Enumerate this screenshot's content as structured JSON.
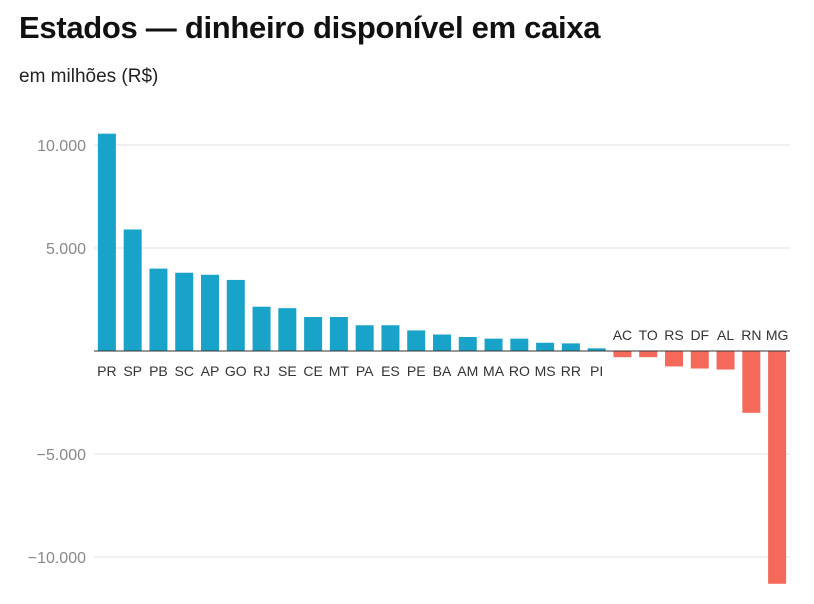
{
  "title": "Estados — dinheiro disponível em caixa",
  "subtitle": "em milhões (R$)",
  "chart_data": {
    "type": "bar",
    "title": "Estados — dinheiro disponível em caixa",
    "subtitle": "em milhões (R$)",
    "xlabel": "",
    "ylabel": "",
    "ylim": [
      -11500,
      10600
    ],
    "grid": true,
    "yticks": [
      10000,
      5000,
      -5000,
      -10000
    ],
    "ytick_labels": [
      "10.000",
      "5.000",
      "−5.000",
      "−10.000"
    ],
    "positive_color": "#1aa3c8",
    "negative_color": "#f4695a",
    "categories": [
      "PR",
      "SP",
      "PB",
      "SC",
      "AP",
      "GO",
      "RJ",
      "SE",
      "CE",
      "MT",
      "PA",
      "ES",
      "PE",
      "BA",
      "AM",
      "MA",
      "RO",
      "MS",
      "RR",
      "PI",
      "AC",
      "TO",
      "RS",
      "DF",
      "AL",
      "RN",
      "MG"
    ],
    "values": [
      10550,
      5900,
      4000,
      3800,
      3700,
      3450,
      2150,
      2080,
      1650,
      1650,
      1250,
      1250,
      1000,
      800,
      680,
      600,
      600,
      400,
      370,
      130,
      -300,
      -300,
      -750,
      -850,
      -900,
      -3000,
      -11300
    ]
  }
}
